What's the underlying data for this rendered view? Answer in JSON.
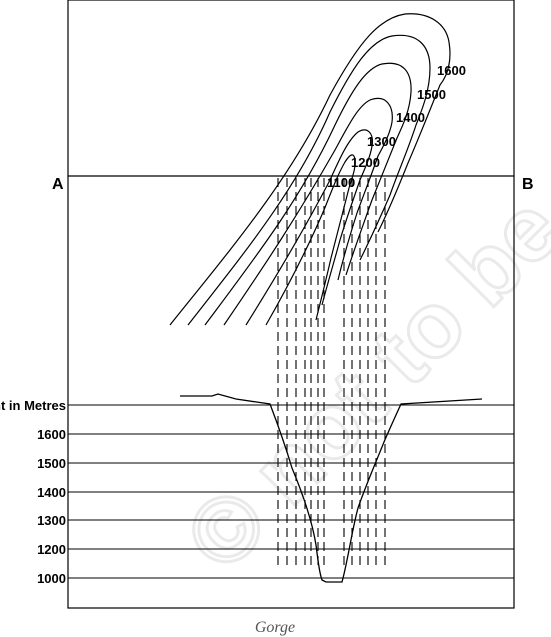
{
  "figure": {
    "caption": "Gorge",
    "watermark": "© not to be republished",
    "section_start_label": "A",
    "section_end_label": "B"
  },
  "contours": {
    "labels": [
      "1600",
      "1500",
      "1400",
      "1300",
      "1200",
      "1100"
    ]
  },
  "profile": {
    "axis_title": "Height in Metres",
    "levels": [
      "1600",
      "1500",
      "1400",
      "1300",
      "1200",
      "1000"
    ]
  }
}
